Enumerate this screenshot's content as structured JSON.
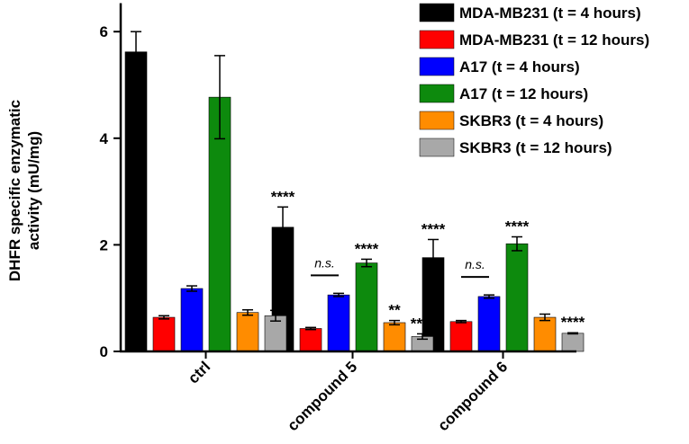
{
  "chart_data": {
    "type": "bar",
    "title": "",
    "xlabel": "",
    "ylabel_lines": [
      "DHFR specific enzymatic",
      "activity (mU/mg)"
    ],
    "ylim": [
      0,
      6.5
    ],
    "yticks": [
      0,
      2,
      4,
      6
    ],
    "categories": [
      "ctrl",
      "compound 5",
      "compound 6"
    ],
    "series": [
      {
        "name": "MDA-MB231 (t = 4 hours)",
        "color": "#000000",
        "values": [
          5.62,
          2.33,
          1.76
        ],
        "errors": [
          0.38,
          0.38,
          0.34
        ],
        "sig": [
          "",
          "****",
          "****"
        ]
      },
      {
        "name": "MDA-MB231 (t = 12 hours)",
        "color": "#ff0000",
        "values": [
          0.64,
          0.43,
          0.56
        ],
        "errors": [
          0.03,
          0.02,
          0.02
        ],
        "sig": [
          "",
          "",
          ""
        ]
      },
      {
        "name": "A17 (t = 4 hours)",
        "color": "#0000ff",
        "values": [
          1.18,
          1.06,
          1.03
        ],
        "errors": [
          0.05,
          0.03,
          0.03
        ],
        "sig": [
          "",
          "",
          ""
        ]
      },
      {
        "name": "A17 (t = 12 hours)",
        "color": "#0d8a0d",
        "values": [
          4.77,
          1.66,
          2.02
        ],
        "errors": [
          0.78,
          0.07,
          0.13
        ],
        "sig": [
          "",
          "****",
          "****"
        ]
      },
      {
        "name": "SKBR3 (t = 4 hours)",
        "color": "#ff8c00",
        "values": [
          0.73,
          0.54,
          0.64
        ],
        "errors": [
          0.05,
          0.04,
          0.06
        ],
        "sig": [
          "",
          "**",
          ""
        ]
      },
      {
        "name": "SKBR3 (t = 12 hours)",
        "color": "#a8a8a8",
        "values": [
          0.67,
          0.28,
          0.34
        ],
        "errors": [
          0.1,
          0.05,
          0.01
        ],
        "sig": [
          "",
          "****",
          "****"
        ]
      }
    ],
    "annotations": [
      {
        "text": "n.s.",
        "category": "compound 5",
        "between_series": [
          1,
          2
        ]
      },
      {
        "text": "n.s.",
        "category": "compound 6",
        "between_series": [
          1,
          2
        ]
      }
    ]
  }
}
